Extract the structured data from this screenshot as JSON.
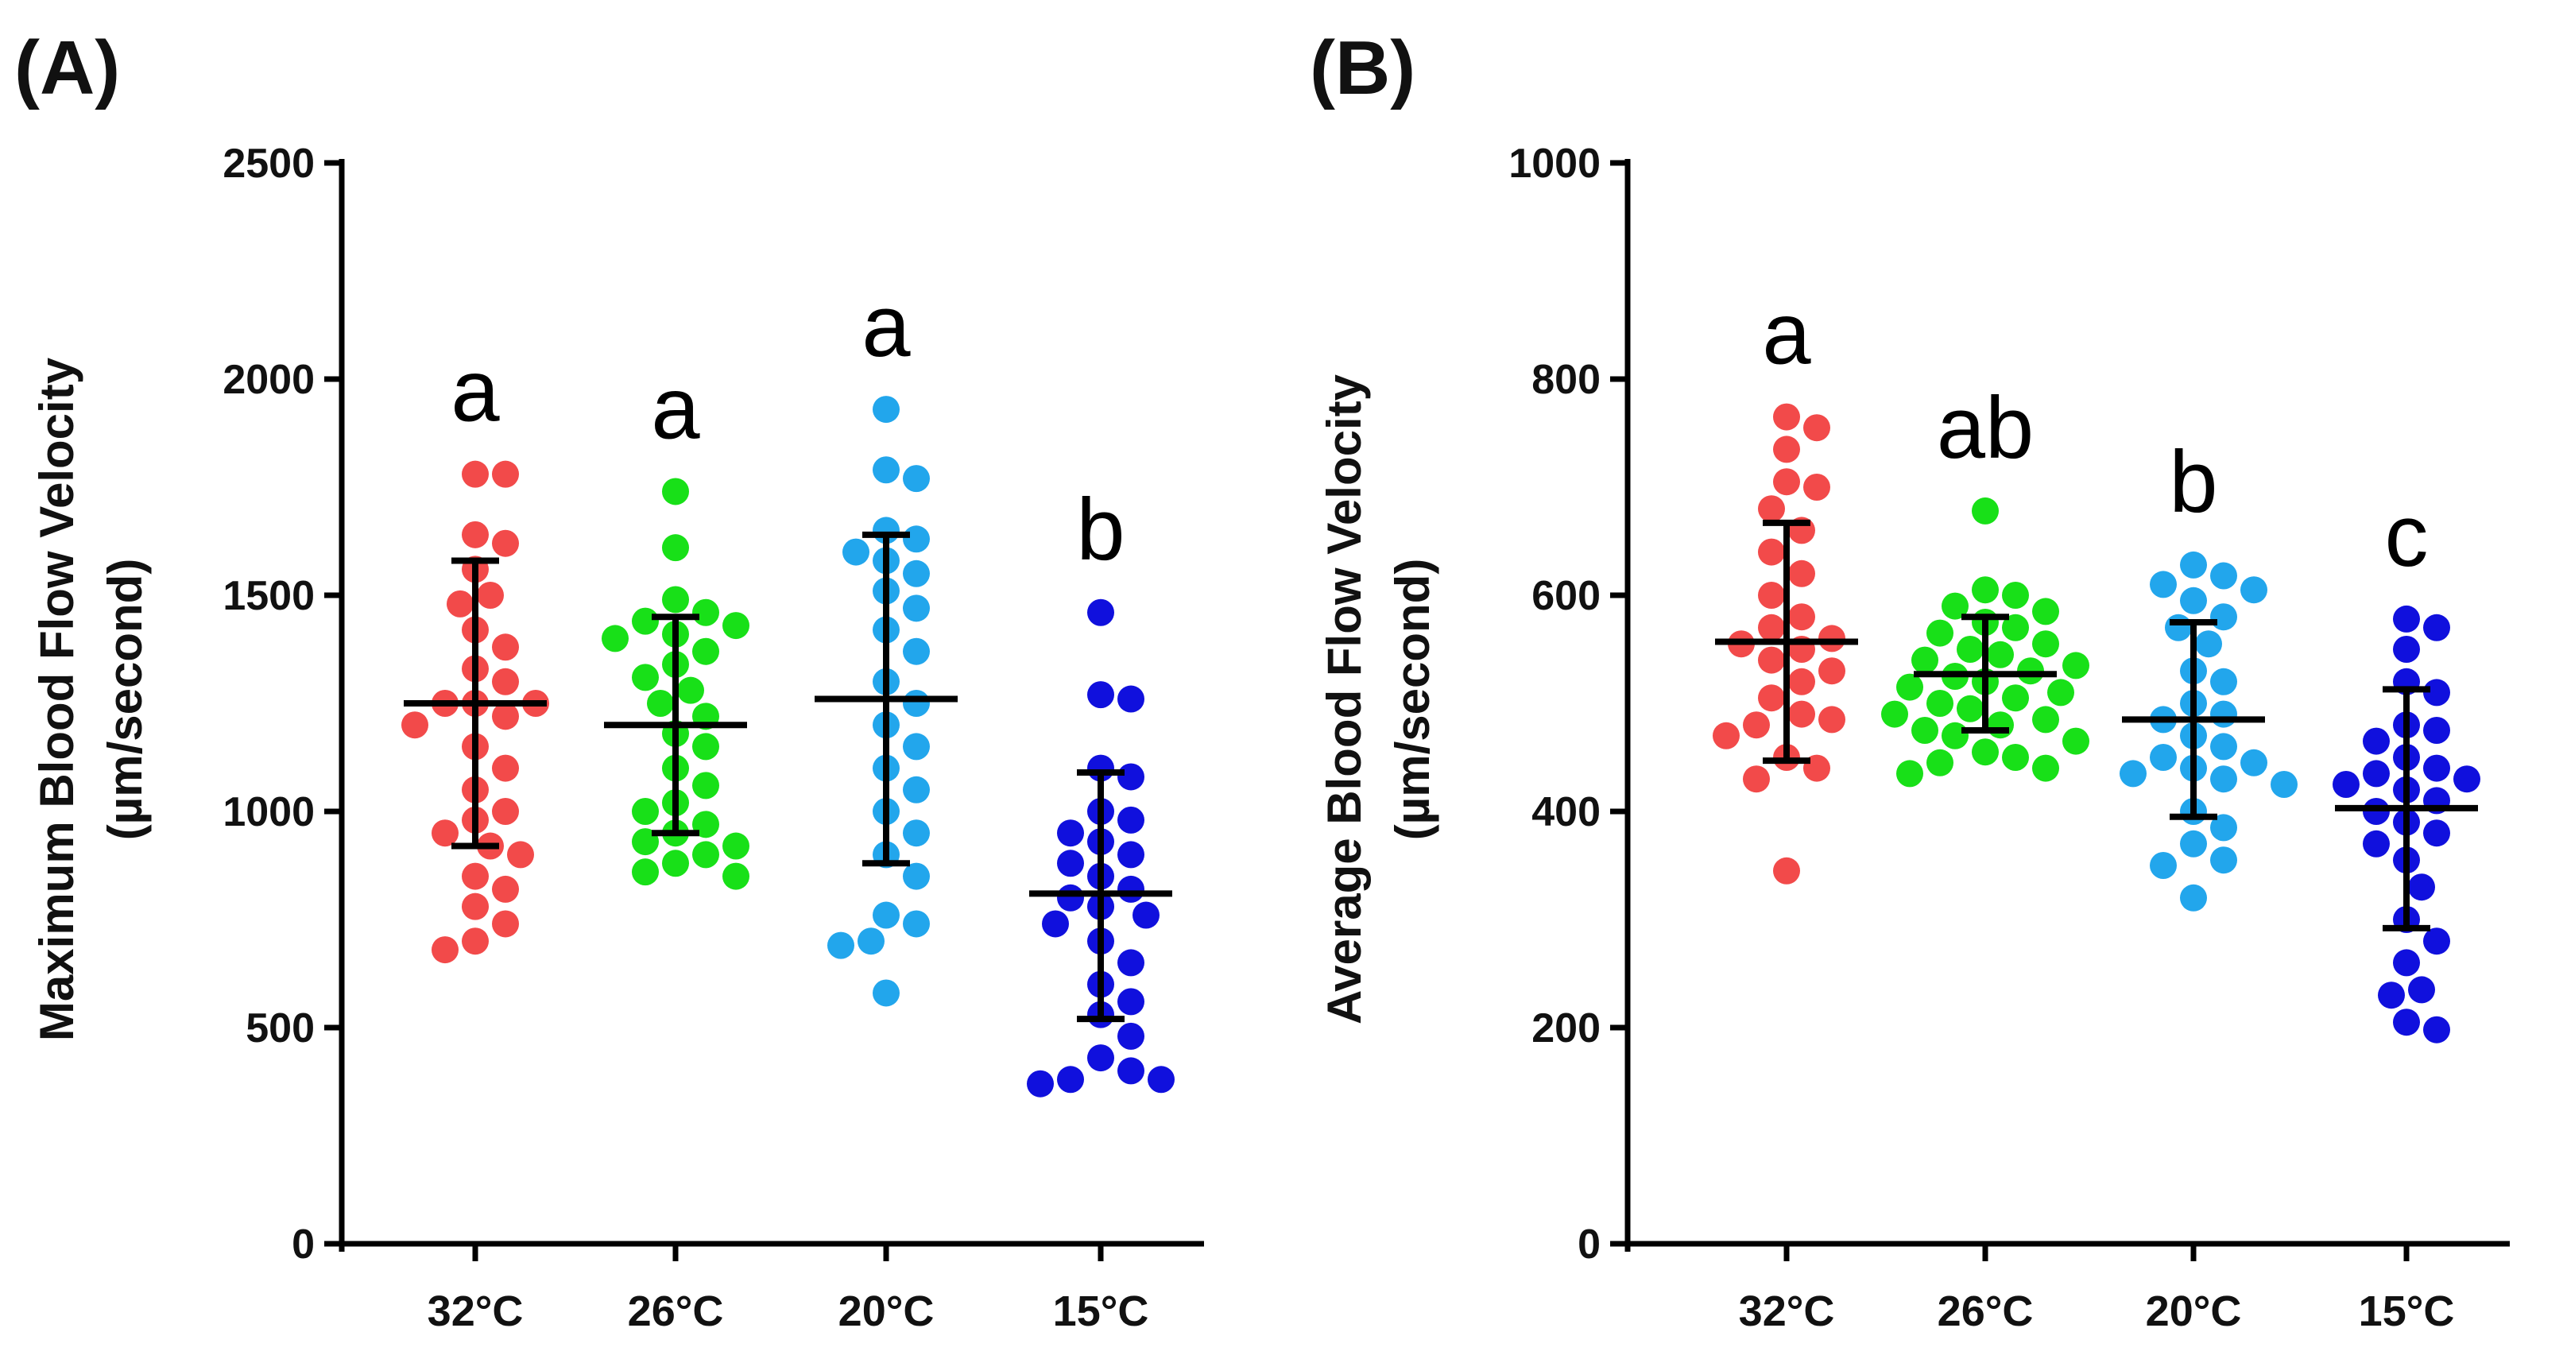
{
  "chart_data": [
    {
      "type": "scatter",
      "panel_label": "(A)",
      "ylabel_line1": "Maximum Blood Flow Velocity",
      "ylabel_line2": "(µm/second)",
      "ylim": [
        0,
        2500
      ],
      "yticks": [
        "0",
        "500",
        "1000",
        "1500",
        "2000",
        "2500"
      ],
      "categories": [
        "32°C",
        "26°C",
        "20°C",
        "15°C"
      ],
      "colors": [
        "#f24a4a",
        "#18e018",
        "#22a6ec",
        "#1010dd"
      ],
      "significance": [
        "a",
        "a",
        "a",
        "b"
      ],
      "series": [
        {
          "name": "32°C",
          "mean": 1250,
          "sd_low": 920,
          "sd_high": 1580,
          "values": [
            1780,
            1780,
            1640,
            1620,
            1560,
            1500,
            1480,
            1420,
            1380,
            1330,
            1300,
            1250,
            1250,
            1250,
            1220,
            1200,
            1150,
            1100,
            1050,
            1000,
            980,
            950,
            920,
            900,
            850,
            820,
            780,
            740,
            700,
            680
          ]
        },
        {
          "name": "26°C",
          "mean": 1200,
          "sd_low": 950,
          "sd_high": 1450,
          "values": [
            1740,
            1610,
            1490,
            1460,
            1440,
            1430,
            1410,
            1400,
            1370,
            1340,
            1310,
            1280,
            1250,
            1220,
            1180,
            1150,
            1100,
            1060,
            1020,
            1000,
            970,
            950,
            930,
            920,
            900,
            880,
            860,
            850
          ]
        },
        {
          "name": "20°C",
          "mean": 1260,
          "sd_low": 880,
          "sd_high": 1640,
          "values": [
            1930,
            1790,
            1770,
            1650,
            1630,
            1600,
            1580,
            1550,
            1510,
            1470,
            1420,
            1370,
            1300,
            1250,
            1200,
            1150,
            1100,
            1050,
            1000,
            950,
            900,
            850,
            760,
            740,
            700,
            690,
            580
          ]
        },
        {
          "name": "15°C",
          "mean": 810,
          "sd_low": 520,
          "sd_high": 1090,
          "values": [
            1460,
            1270,
            1260,
            1100,
            1080,
            1000,
            980,
            950,
            930,
            900,
            880,
            850,
            820,
            800,
            780,
            760,
            740,
            700,
            650,
            600,
            560,
            530,
            480,
            430,
            400,
            380,
            380,
            370
          ]
        }
      ]
    },
    {
      "type": "scatter",
      "panel_label": "(B)",
      "ylabel_line1": "Average Blood Flow Velocity",
      "ylabel_line2": "(µm/second)",
      "ylim": [
        0,
        1000
      ],
      "yticks": [
        "0",
        "200",
        "400",
        "600",
        "800",
        "1000"
      ],
      "categories": [
        "32°C",
        "26°C",
        "20°C",
        "15°C"
      ],
      "colors": [
        "#f24a4a",
        "#18e018",
        "#22a6ec",
        "#1010dd"
      ],
      "significance": [
        "a",
        "ab",
        "b",
        "c"
      ],
      "series": [
        {
          "name": "32°C",
          "mean": 557,
          "sd_low": 447,
          "sd_high": 667,
          "values": [
            765,
            755,
            735,
            705,
            700,
            680,
            660,
            640,
            620,
            600,
            580,
            570,
            560,
            555,
            550,
            540,
            530,
            520,
            505,
            490,
            485,
            480,
            470,
            450,
            440,
            430,
            345
          ]
        },
        {
          "name": "26°C",
          "mean": 527,
          "sd_low": 475,
          "sd_high": 580,
          "values": [
            678,
            605,
            600,
            590,
            585,
            575,
            570,
            565,
            555,
            550,
            545,
            540,
            535,
            530,
            525,
            520,
            515,
            510,
            505,
            500,
            495,
            490,
            485,
            480,
            475,
            470,
            465,
            455,
            450,
            445,
            440,
            435
          ]
        },
        {
          "name": "20°C",
          "mean": 485,
          "sd_low": 395,
          "sd_high": 575,
          "values": [
            628,
            618,
            610,
            605,
            595,
            580,
            570,
            555,
            530,
            520,
            500,
            490,
            485,
            470,
            460,
            450,
            445,
            440,
            435,
            430,
            425,
            400,
            385,
            370,
            355,
            350,
            320
          ]
        },
        {
          "name": "15°C",
          "mean": 403,
          "sd_low": 292,
          "sd_high": 513,
          "values": [
            578,
            570,
            550,
            520,
            510,
            480,
            475,
            465,
            450,
            440,
            435,
            430,
            425,
            420,
            410,
            400,
            390,
            380,
            370,
            355,
            330,
            300,
            280,
            260,
            235,
            230,
            205,
            198
          ]
        }
      ]
    }
  ]
}
